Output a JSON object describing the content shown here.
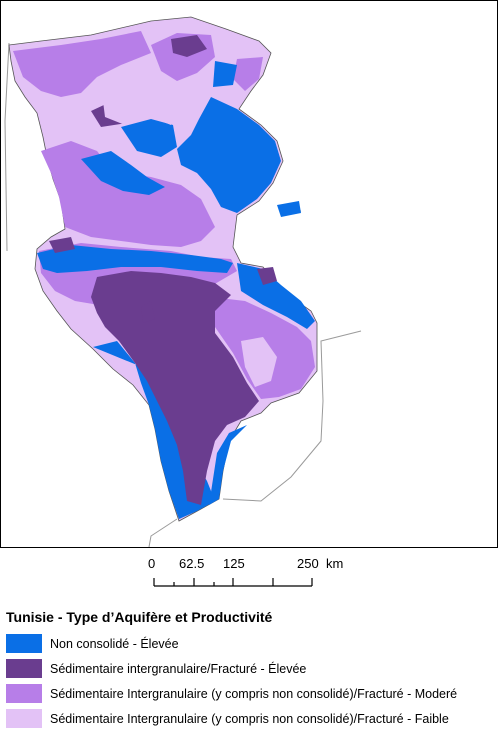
{
  "scale": {
    "labels": [
      "0",
      "62.5",
      "125",
      "250"
    ],
    "unit": "km"
  },
  "legend": {
    "title": "Tunisie - Type d’Aquifère et Productivité",
    "items": [
      {
        "label": "Non consolidé - Élevée",
        "color": "#0a6fe6"
      },
      {
        "label": "Sédimentaire intergranulaire/Fracturé - Élevée",
        "color": "#6a3d8f"
      },
      {
        "label": "Sédimentaire Intergranulaire (y compris non consolidé)/Fracturé - Moderé",
        "color": "#b77ee8"
      },
      {
        "label": "Sédimentaire Intergranulaire (y compris non consolidé)/Fracturé - Faible",
        "color": "#e3c2f6"
      }
    ]
  }
}
